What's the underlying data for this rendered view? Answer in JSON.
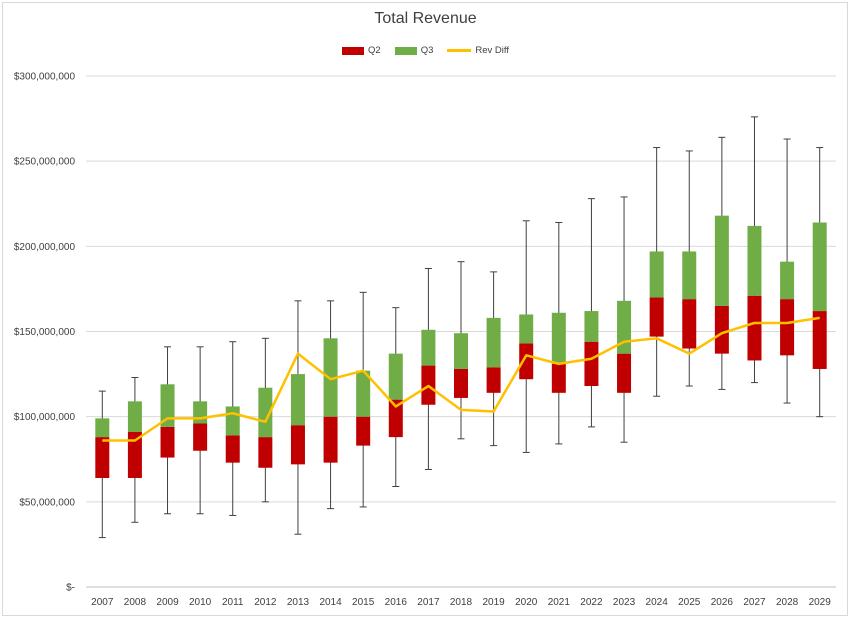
{
  "chart_data": {
    "type": "bar",
    "title": "Total Revenue",
    "legend": [
      {
        "name": "Q2",
        "color": "#c00000"
      },
      {
        "name": "Q3",
        "color": "#70ad47"
      },
      {
        "name": "Rev Diff",
        "color": "#ffc000"
      }
    ],
    "ylim": [
      0,
      300000000
    ],
    "yticks": [
      "$-",
      "$50,000,000",
      "$100,000,000",
      "$150,000,000",
      "$200,000,000",
      "$250,000,000",
      "$300,000,000"
    ],
    "categories": [
      "2007",
      "2008",
      "2009",
      "2010",
      "2011",
      "2012",
      "2013",
      "2014",
      "2015",
      "2016",
      "2017",
      "2018",
      "2019",
      "2020",
      "2021",
      "2022",
      "2023",
      "2024",
      "2025",
      "2026",
      "2027",
      "2028",
      "2029"
    ],
    "q2_low": [
      64000000,
      64000000,
      76000000,
      80000000,
      73000000,
      70000000,
      72000000,
      73000000,
      83000000,
      88000000,
      107000000,
      111000000,
      114000000,
      122000000,
      114000000,
      118000000,
      114000000,
      147000000,
      140000000,
      137000000,
      133000000,
      136000000,
      128000000
    ],
    "q2_high": [
      88000000,
      91000000,
      94000000,
      96000000,
      89000000,
      88000000,
      95000000,
      100000000,
      100000000,
      110000000,
      130000000,
      128000000,
      129000000,
      143000000,
      131000000,
      144000000,
      137000000,
      170000000,
      169000000,
      165000000,
      171000000,
      169000000,
      162000000
    ],
    "q3_high": [
      99000000,
      109000000,
      119000000,
      109000000,
      106000000,
      117000000,
      125000000,
      146000000,
      127000000,
      137000000,
      151000000,
      149000000,
      158000000,
      160000000,
      161000000,
      162000000,
      168000000,
      197000000,
      197000000,
      218000000,
      212000000,
      191000000,
      214000000
    ],
    "whisker_low": [
      29000000,
      38000000,
      43000000,
      43000000,
      42000000,
      50000000,
      31000000,
      46000000,
      47000000,
      59000000,
      69000000,
      87000000,
      83000000,
      79000000,
      84000000,
      94000000,
      85000000,
      112000000,
      118000000,
      116000000,
      120000000,
      108000000,
      100000000
    ],
    "whisker_high": [
      115000000,
      123000000,
      141000000,
      141000000,
      144000000,
      146000000,
      168000000,
      168000000,
      173000000,
      164000000,
      187000000,
      191000000,
      185000000,
      215000000,
      214000000,
      228000000,
      229000000,
      258000000,
      256000000,
      264000000,
      276000000,
      263000000,
      258000000
    ],
    "rev_diff": [
      86000000,
      86000000,
      99000000,
      99000000,
      102000000,
      97000000,
      137000000,
      122000000,
      127000000,
      106000000,
      118000000,
      104000000,
      103000000,
      136000000,
      131000000,
      134000000,
      144000000,
      146000000,
      137000000,
      149000000,
      155000000,
      155000000,
      158000000
    ],
    "grid": true,
    "legend_position": "top"
  }
}
